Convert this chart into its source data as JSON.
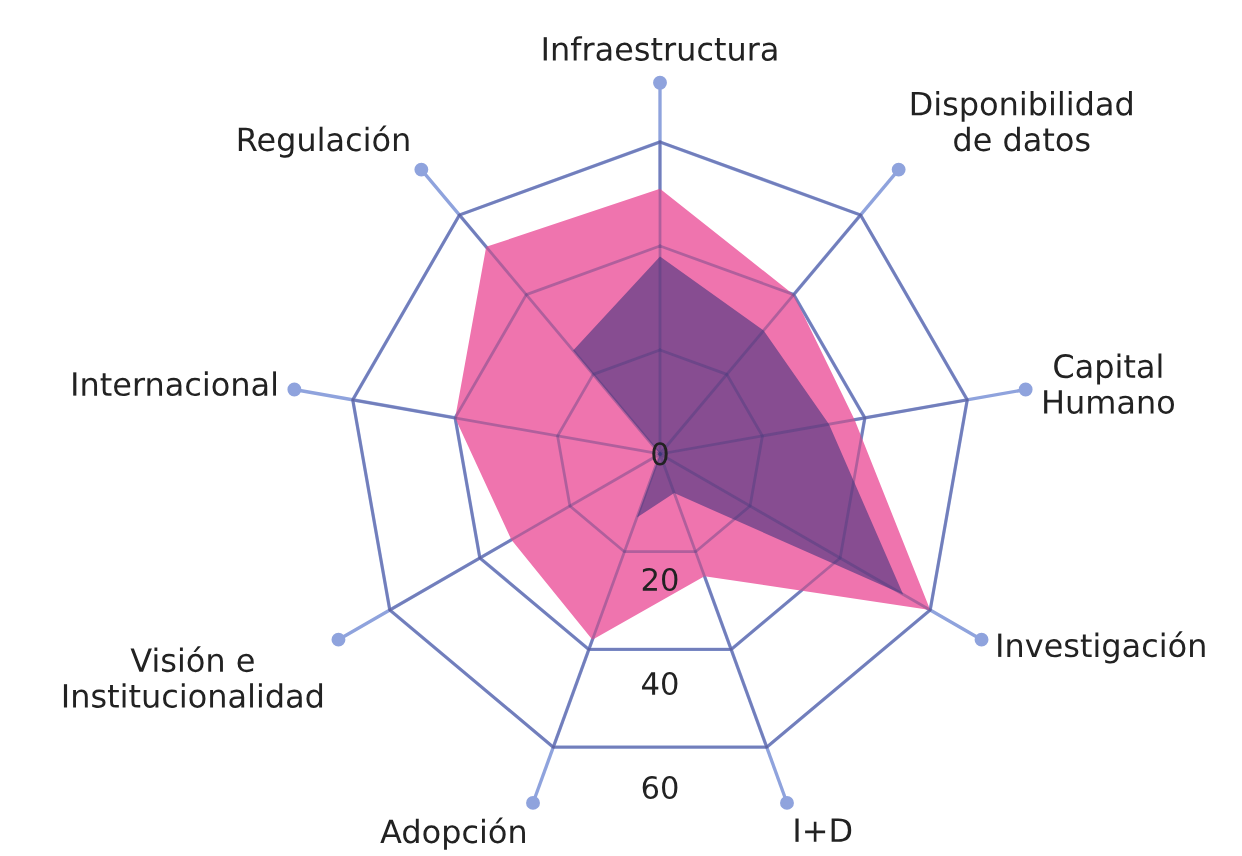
{
  "chart_data": {
    "type": "radar",
    "categories": [
      "Infraestructura",
      "Disponibilidad\nde datos",
      "Capital\nHumano",
      "Investigación",
      "I+D",
      "Adopción",
      "Visión e\nInstitucionalidad",
      "Internacional",
      "Regulación"
    ],
    "series": [
      {
        "color": "#ef74ae",
        "values": [
          51,
          40,
          38,
          60,
          25,
          38,
          33,
          40,
          52
        ]
      },
      {
        "color": "#874d91",
        "values": [
          38,
          31,
          33,
          54,
          8,
          13,
          0,
          0,
          26
        ]
      }
    ],
    "ylim": [
      0,
      60
    ],
    "yticks": [
      0,
      20,
      40,
      60
    ],
    "grid": true
  }
}
